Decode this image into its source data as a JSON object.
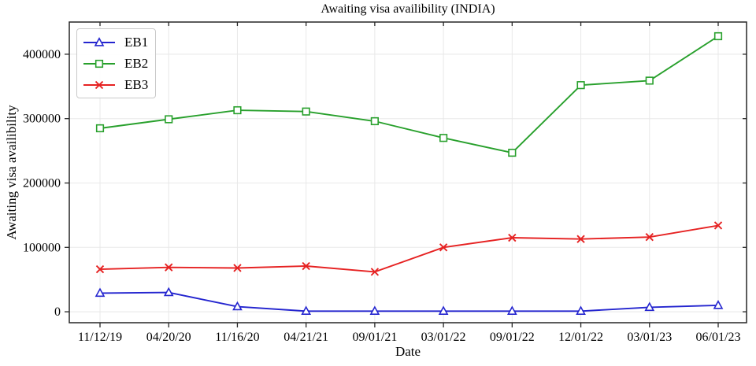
{
  "chart_data": {
    "type": "line",
    "title": "Awaiting visa availibility (INDIA)",
    "xlabel": "Date",
    "ylabel": "Awaiting visa availibility",
    "categories": [
      "11/12/19",
      "04/20/20",
      "11/16/20",
      "04/21/21",
      "09/01/21",
      "03/01/22",
      "09/01/22",
      "12/01/22",
      "03/01/23",
      "06/01/23"
    ],
    "y_ticks": [
      0,
      100000,
      200000,
      300000,
      400000
    ],
    "ylim": [
      -17000,
      450000
    ],
    "grid": true,
    "legend_position": "upper-left",
    "colors": {
      "grid": "#e8e8e8",
      "spine": "#262626",
      "text": "#000000",
      "marker_fill": "#ffffff"
    },
    "series": [
      {
        "name": "EB1",
        "color": "#2425cf",
        "marker": "triangle",
        "values": [
          29000,
          30000,
          8000,
          1000,
          1000,
          1000,
          1000,
          1000,
          7000,
          10000
        ]
      },
      {
        "name": "EB2",
        "color": "#28a02c",
        "marker": "square",
        "values": [
          285000,
          299000,
          313000,
          311000,
          296000,
          270000,
          247000,
          352000,
          359000,
          428000
        ]
      },
      {
        "name": "EB3",
        "color": "#e62222",
        "marker": "x",
        "values": [
          66000,
          69000,
          68000,
          71000,
          62000,
          100000,
          115000,
          113000,
          116000,
          134000
        ]
      }
    ]
  }
}
